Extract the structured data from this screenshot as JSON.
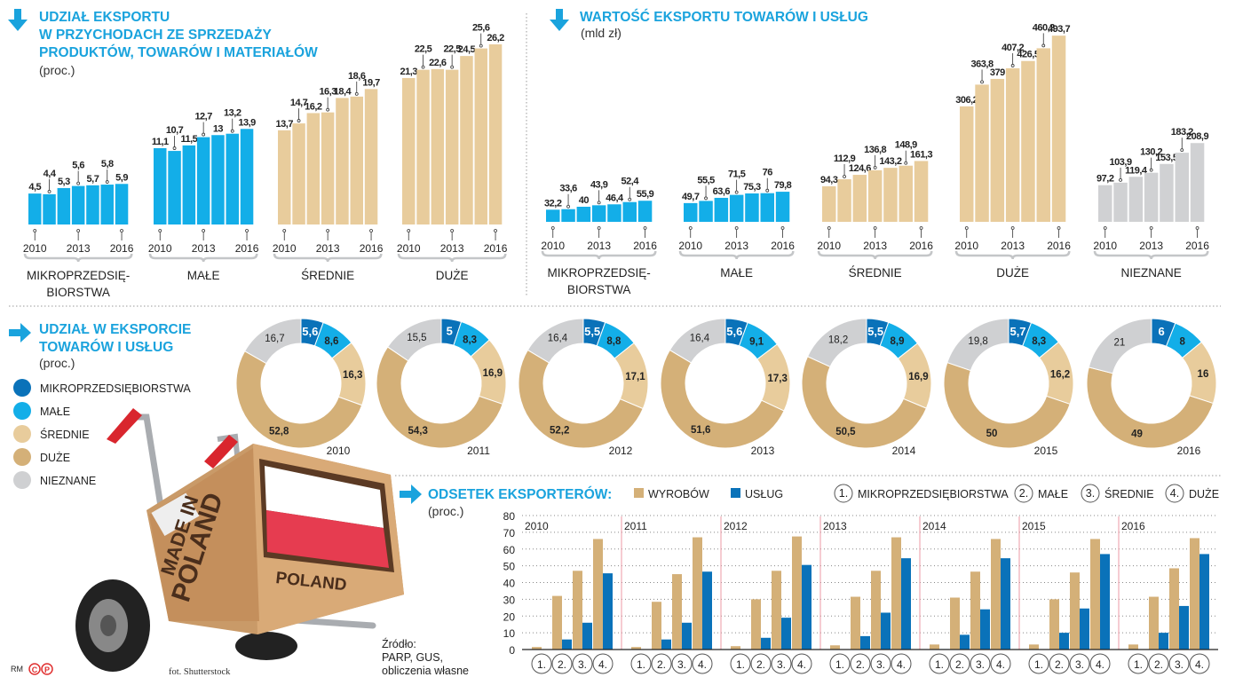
{
  "colors": {
    "title": "#1aa3dd",
    "micro": "#0a72b9",
    "male": "#13aee8",
    "srednie": "#e8cc9c",
    "duze": "#d4b078",
    "nieznane": "#cfd0d2",
    "wyrobow": "#d4b078",
    "uslug": "#0a72b9"
  },
  "icons": {
    "section_arrow_down": "arrow-down-icon",
    "section_arrow_right": "arrow-right-icon"
  },
  "chart_data": [
    {
      "type": "bar",
      "title_lines": [
        "UDZIAŁ EKSPORTU",
        "W PRZYCHODACH ZE SPRZEDAŻY",
        "PRODUKTÓW, TOWARÓW I MATERIAŁÓW"
      ],
      "unit": "(proc.)",
      "years": [
        2010,
        2011,
        2012,
        2013,
        2014,
        2015,
        2016
      ],
      "tick_labels": [
        "2010",
        "2013",
        "2016"
      ],
      "groups": [
        {
          "label_lines": [
            "MIKROPRZEDSIĘ-",
            "BIORSTWA"
          ],
          "color": "#13aee8",
          "values": [
            4.5,
            4.4,
            5.3,
            5.6,
            5.7,
            5.8,
            5.9
          ],
          "labels": [
            "4,5",
            "4,4",
            "5,3",
            "5,6",
            "5,7",
            "5,8",
            "5,9"
          ]
        },
        {
          "label_lines": [
            "MAŁE"
          ],
          "color": "#13aee8",
          "values": [
            11.1,
            10.7,
            11.5,
            12.7,
            13,
            13.2,
            13.9
          ],
          "labels": [
            "11,1",
            "10,7",
            "11,5",
            "12,7",
            "13",
            "13,2",
            "13,9"
          ]
        },
        {
          "label_lines": [
            "ŚREDNIE"
          ],
          "color": "#e8cc9c",
          "values": [
            13.7,
            14.7,
            16.2,
            16.3,
            18.4,
            18.6,
            19.7
          ],
          "labels": [
            "13,7",
            "14,7",
            "16,2",
            "16,3",
            "18,4",
            "18,6",
            "19,7"
          ]
        },
        {
          "label_lines": [
            "DUŻE"
          ],
          "color": "#e8cc9c",
          "values": [
            21.3,
            22.5,
            22.6,
            22.5,
            24.5,
            25.6,
            26.2
          ],
          "labels": [
            "21,3",
            "22,5",
            "22,6",
            "22,5",
            "24,5",
            "25,6",
            "26,2"
          ]
        }
      ]
    },
    {
      "type": "bar",
      "title_lines": [
        "WARTOŚĆ EKSPORTU TOWARÓW I USŁUG"
      ],
      "unit": "(mld zł)",
      "years": [
        2010,
        2011,
        2012,
        2013,
        2014,
        2015,
        2016
      ],
      "tick_labels": [
        "2010",
        "2013",
        "2016"
      ],
      "groups": [
        {
          "label_lines": [
            "MIKROPRZEDSIĘ-",
            "BIORSTWA"
          ],
          "color": "#13aee8",
          "values": [
            32.2,
            33.6,
            40,
            43.9,
            46.4,
            52.4,
            55.9
          ],
          "labels": [
            "32,2",
            "33,6",
            "40",
            "43,9",
            "46,4",
            "52,4",
            "55,9"
          ]
        },
        {
          "label_lines": [
            "MAŁE"
          ],
          "color": "#13aee8",
          "values": [
            49.7,
            55.5,
            63.6,
            71.5,
            75.3,
            76,
            79.8
          ],
          "labels": [
            "49,7",
            "55,5",
            "63,6",
            "71,5",
            "75,3",
            "76",
            "79,8"
          ]
        },
        {
          "label_lines": [
            "ŚREDNIE"
          ],
          "color": "#e8cc9c",
          "values": [
            94.3,
            112.9,
            124.6,
            136.8,
            143.2,
            148.9,
            161.3
          ],
          "labels": [
            "94,3",
            "112,9",
            "124,6",
            "136,8",
            "143,2",
            "148,9",
            "161,3"
          ]
        },
        {
          "label_lines": [
            "DUŻE"
          ],
          "color": "#e8cc9c",
          "values": [
            306.2,
            363.8,
            379,
            407.2,
            426.5,
            460.2,
            493.7
          ],
          "labels": [
            "306,2",
            "363,8",
            "379",
            "407,2",
            "426,5",
            "460,2",
            "493,7"
          ]
        },
        {
          "label_lines": [
            "NIEZNANE"
          ],
          "color": "#d0d1d3",
          "values": [
            97.2,
            103.9,
            119.4,
            130.2,
            153.5,
            183.2,
            208.9
          ],
          "labels": [
            "97,2",
            "103,9",
            "119,4",
            "130,2",
            "153,5",
            "183,2",
            "208,9"
          ]
        }
      ]
    },
    {
      "type": "pie",
      "title_lines": [
        "UDZIAŁ W EKSPORCIE",
        "TOWARÓW I USŁUG"
      ],
      "unit": "(proc.)",
      "legend": [
        {
          "label": "MIKROPRZEDSIĘBIORSTWA",
          "color": "#0a72b9"
        },
        {
          "label": "MAŁE",
          "color": "#13aee8"
        },
        {
          "label": "ŚREDNIE",
          "color": "#e8cc9c"
        },
        {
          "label": "DUŻE",
          "color": "#d4b078"
        },
        {
          "label": "NIEZNANE",
          "color": "#cfd0d2"
        }
      ],
      "donuts": [
        {
          "year": "2010",
          "values": [
            5.6,
            8.6,
            16.3,
            52.8,
            16.7
          ],
          "labels": [
            "5,6",
            "8,6",
            "16,3",
            "52,8",
            "16,7"
          ]
        },
        {
          "year": "2011",
          "values": [
            5,
            8.3,
            16.9,
            54.3,
            15.5
          ],
          "labels": [
            "5",
            "8,3",
            "16,9",
            "54,3",
            "15,5"
          ]
        },
        {
          "year": "2012",
          "values": [
            5.5,
            8.8,
            17.1,
            52.2,
            16.4
          ],
          "labels": [
            "5,5",
            "8,8",
            "17,1",
            "52,2",
            "16,4"
          ]
        },
        {
          "year": "2013",
          "values": [
            5.6,
            9.1,
            17.3,
            51.6,
            16.4
          ],
          "labels": [
            "5,6",
            "9,1",
            "17,3",
            "51,6",
            "16,4"
          ]
        },
        {
          "year": "2014",
          "values": [
            5.5,
            8.9,
            16.9,
            50.5,
            18.2
          ],
          "labels": [
            "5,5",
            "8,9",
            "16,9",
            "50,5",
            "18,2"
          ]
        },
        {
          "year": "2015",
          "values": [
            5.7,
            8.3,
            16.2,
            50,
            19.8
          ],
          "labels": [
            "5,7",
            "8,3",
            "16,2",
            "50",
            "19,8"
          ]
        },
        {
          "year": "2016",
          "values": [
            6,
            8,
            16,
            49,
            21
          ],
          "labels": [
            "6",
            "8",
            "16",
            "49",
            "21"
          ]
        }
      ]
    },
    {
      "type": "bar",
      "title_lines": [
        "ODSETEK EKSPORTERÓW:"
      ],
      "unit": "(proc.)",
      "ylim": [
        0,
        80
      ],
      "yticks": [
        "0",
        "10",
        "20",
        "30",
        "40",
        "50",
        "60",
        "70",
        "80"
      ],
      "grid": true,
      "series_names": [
        "WYROBÓW",
        "USŁUG"
      ],
      "category_legend": [
        {
          "num": "1.",
          "label": "MIKROPRZEDSIĘBIORSTWA"
        },
        {
          "num": "2.",
          "label": "MAŁE"
        },
        {
          "num": "3.",
          "label": "ŚREDNIE"
        },
        {
          "num": "4.",
          "label": "DUŻE"
        }
      ],
      "categories": [
        "1.",
        "2.",
        "3.",
        "4."
      ],
      "panels": [
        {
          "year": "2010",
          "wyrobow": [
            1.5,
            32,
            47,
            66
          ],
          "uslug": [
            0,
            6,
            16,
            45.5
          ]
        },
        {
          "year": "2011",
          "wyrobow": [
            1.5,
            28.5,
            45,
            67
          ],
          "uslug": [
            0,
            6,
            16,
            46.5
          ]
        },
        {
          "year": "2012",
          "wyrobow": [
            2,
            30,
            47,
            67.5
          ],
          "uslug": [
            0,
            7,
            19,
            50.5
          ]
        },
        {
          "year": "2013",
          "wyrobow": [
            2.5,
            31.5,
            47,
            67
          ],
          "uslug": [
            0,
            8,
            22,
            54.5
          ]
        },
        {
          "year": "2014",
          "wyrobow": [
            3,
            31,
            46.5,
            66
          ],
          "uslug": [
            0.3,
            8.8,
            24,
            54.5
          ]
        },
        {
          "year": "2015",
          "wyrobow": [
            3,
            30,
            46,
            66
          ],
          "uslug": [
            0,
            10,
            24.5,
            57
          ]
        },
        {
          "year": "2016",
          "wyrobow": [
            3,
            31.5,
            48.5,
            66.5
          ],
          "uslug": [
            0,
            10,
            26,
            57
          ]
        }
      ]
    }
  ],
  "photo": {
    "box_text_1": "MADE IN",
    "box_text_2": "POLAND",
    "box_text_3": "POLAND"
  },
  "footer": {
    "credit": "fot. Shutterstock",
    "source_lines": [
      "Źródło:",
      "PARP, GUS,",
      "obliczenia własne"
    ],
    "author": "RM",
    "logo_c": "C",
    "logo_p": "P"
  }
}
